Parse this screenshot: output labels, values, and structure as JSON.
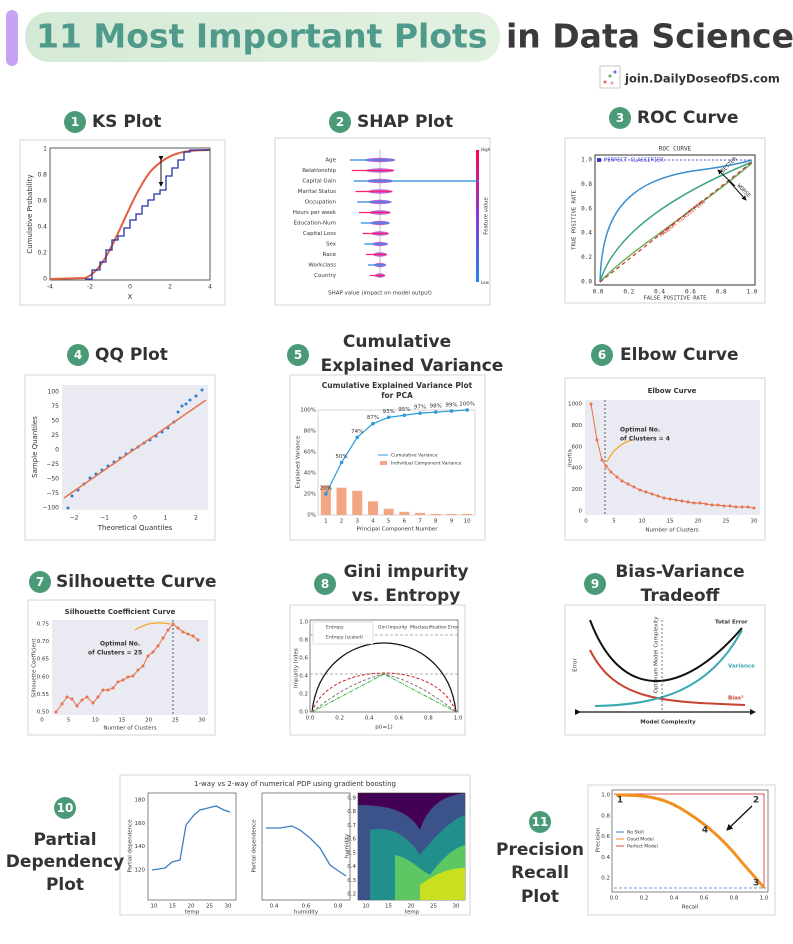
{
  "header": {
    "title_highlight": "11 Most Important Plots",
    "title_rest": "in Data Science",
    "brand": "join.DailyDoseofDS.com"
  },
  "plots": [
    {
      "number": "1",
      "title": [
        "KS Plot"
      ],
      "y_label": "Cumulative Probability",
      "x_label": "X",
      "xticks": [
        "-4",
        "-2",
        "0",
        "2",
        "4"
      ],
      "yticks": [
        "0",
        "0.2",
        "0.4",
        "0.6",
        "0.8",
        "1"
      ]
    },
    {
      "number": "2",
      "title": [
        "SHAP Plot"
      ],
      "features": [
        "Age",
        "Relationship",
        "Capital Gain",
        "Marital Status",
        "Occupation",
        "Hours per week",
        "Education-Num",
        "Capital Loss",
        "Sex",
        "Race",
        "Workclass",
        "Country"
      ],
      "x_label": "SHAP value (impact on model output)",
      "color_label": "Feature value",
      "high": "High",
      "low": "Low"
    },
    {
      "number": "3",
      "title": [
        "ROC Curve"
      ],
      "chart_title": "ROC CURVE",
      "perfect": "PERFECT CLASSIFIER",
      "better": "BETTER",
      "worse": "WORSE",
      "random": "RANDOM CLASSIFIER",
      "y_label": "TRUE POSITIVE RATE",
      "x_label": "FALSE POSITIVE RATE",
      "xticks": [
        "0.0",
        "0.2",
        "0.4",
        "0.6",
        "0.8",
        "1.0"
      ],
      "yticks": [
        "1.0",
        "0.8",
        "0.6",
        "0.4",
        "0.2",
        "0.0"
      ]
    },
    {
      "number": "4",
      "title": [
        "QQ Plot"
      ],
      "y_label": "Sample Quantiles",
      "x_label": "Theoretical Quantiles",
      "xticks": [
        "−2",
        "−1",
        "0",
        "1",
        "2"
      ],
      "yticks": [
        "100",
        "75",
        "50",
        "25",
        "0",
        "−25",
        "−50",
        "−75",
        "−100"
      ]
    },
    {
      "number": "5",
      "title": [
        "Cumulative",
        "Explained Variance"
      ],
      "chart_title": [
        "Cumulative Explained Variance Plot",
        "for PCA"
      ],
      "ylim": [
        0,
        100
      ],
      "cumulative": [
        20,
        50,
        74,
        87,
        93,
        95,
        97,
        98,
        99,
        100
      ],
      "value_labels": [
        "20%",
        "50%",
        "74%",
        "87%",
        "93%",
        "95%",
        "97%",
        "98%",
        "99%",
        "100%"
      ],
      "components": [
        28,
        26,
        23,
        13,
        6,
        3,
        2,
        1,
        1,
        1
      ],
      "legend": [
        "Cumulative Variance",
        "Individual Component Variance"
      ],
      "y_label": "Explained Variance",
      "x_label": "Principal Component Number",
      "xticks": [
        "1",
        "2",
        "3",
        "4",
        "5",
        "6",
        "7",
        "8",
        "9",
        "10"
      ],
      "yticks": [
        "100%",
        "80%",
        "60%",
        "40%",
        "20%",
        "0%"
      ]
    },
    {
      "number": "6",
      "title": [
        "Elbow Curve"
      ],
      "chart_title": "Elbow Curve",
      "annotation": [
        "Optimal No.",
        "of Clusters = 4"
      ],
      "y_label": "Inertia",
      "x_label": "Number of Clusters",
      "xticks": [
        "0",
        "5",
        "10",
        "15",
        "20",
        "25",
        "30"
      ],
      "yticks": [
        "1000",
        "800",
        "600",
        "400",
        "200",
        "0"
      ]
    },
    {
      "number": "7",
      "title": [
        "Silhouette Curve"
      ],
      "chart_title": "Silhouette Coefficient Curve",
      "annotation": [
        "Optimal No.",
        "of Clusters = 25"
      ],
      "y_label": "Silhouette Coefficient",
      "x_label": "Number of Clusters",
      "xticks": [
        "0",
        "5",
        "10",
        "15",
        "20",
        "25",
        "30"
      ],
      "yticks": [
        "0.75",
        "0.70",
        "0.65",
        "0.60",
        "0.55",
        "0.50"
      ]
    },
    {
      "number": "8",
      "title": [
        "Gini impurity",
        "vs. Entropy"
      ],
      "legend": [
        "Entropy",
        "Gini Impurity",
        "Misclassification Error",
        "Entropy (scaled)"
      ],
      "y_label": "Impurity Index",
      "x_label": "p(i=1)",
      "xticks": [
        "0.0",
        "0.2",
        "0.4",
        "0.6",
        "0.8",
        "1.0"
      ],
      "yticks": [
        "1.0",
        "0.8",
        "0.6",
        "0.4",
        "0.2",
        "0.0"
      ]
    },
    {
      "number": "9",
      "title": [
        "Bias-Variance",
        "Tradeoff"
      ],
      "total": "Total Error",
      "variance": "Variance",
      "bias": "Bias²",
      "optimum": "Optimum Model Complexity",
      "y_label": "Error",
      "x_label": "Model Complexity"
    },
    {
      "number": "10",
      "title": [
        "Partial",
        "Dependency",
        "Plot"
      ],
      "chart_title": "1-way vs 2-way of numerical PDP using gradient boosting",
      "y_label": "Partial dependence",
      "x1_label": "temp",
      "x2_label": "humidity",
      "x3_label": "temp",
      "y3_label": "humidity",
      "x1ticks": [
        "10",
        "15",
        "20",
        "25",
        "30"
      ],
      "y1ticks": [
        "180",
        "160",
        "140",
        "120"
      ],
      "x2ticks": [
        "0.4",
        "0.6",
        "0.8"
      ],
      "x3ticks": [
        "10",
        "15",
        "20",
        "25",
        "30"
      ],
      "y3ticks": [
        "0.9",
        "0.8",
        "0.7",
        "0.6",
        "0.5",
        "0.4",
        "0.3",
        "0.2"
      ]
    },
    {
      "number": "11",
      "title": [
        "Precision",
        "Recall",
        "Plot"
      ],
      "legend": [
        "No Skill",
        "Good Model",
        "Perfect Model"
      ],
      "y_label": "Precision",
      "x_label": "Recall",
      "points": [
        "1",
        "2",
        "3",
        "4"
      ],
      "xticks": [
        "0.0",
        "0.2",
        "0.4",
        "0.6",
        "0.8",
        "1.0"
      ],
      "yticks": [
        "1.0",
        "0.8",
        "0.6",
        "0.4",
        "0.2"
      ]
    }
  ]
}
